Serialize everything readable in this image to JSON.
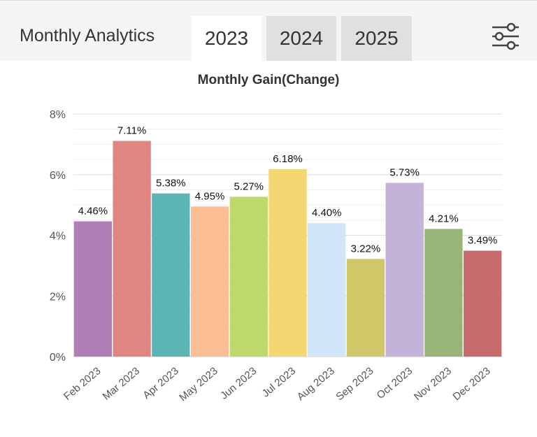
{
  "header": {
    "title": "Monthly Analytics",
    "tabs": [
      {
        "label": "2023",
        "active": true
      },
      {
        "label": "2024",
        "active": false
      },
      {
        "label": "2025",
        "active": false
      }
    ],
    "settings_icon": "sliders-icon"
  },
  "chart_data": {
    "type": "bar",
    "title": "Monthly Gain(Change)",
    "xlabel": "",
    "ylabel": "",
    "ylim": [
      0,
      8
    ],
    "yticks": [
      "0%",
      "2%",
      "4%",
      "6%",
      "8%"
    ],
    "grid": true,
    "categories": [
      "Feb 2023",
      "Mar 2023",
      "Apr 2023",
      "May 2023",
      "Jun 2023",
      "Jul 2023",
      "Aug 2023",
      "Sep 2023",
      "Oct 2023",
      "Nov 2023",
      "Dec 2023"
    ],
    "values": [
      4.46,
      7.11,
      5.38,
      4.95,
      5.27,
      6.18,
      4.4,
      3.22,
      5.73,
      4.21,
      3.49
    ],
    "labels": [
      "4.46%",
      "7.11%",
      "5.38%",
      "4.95%",
      "5.27%",
      "6.18%",
      "4.40%",
      "3.22%",
      "5.73%",
      "4.21%",
      "3.49%"
    ],
    "colors": [
      "#b07fb5",
      "#e08582",
      "#5ab5b5",
      "#fbbd91",
      "#bcd96a",
      "#f5d772",
      "#d2e6f9",
      "#cfc768",
      "#c4b2d8",
      "#98b477",
      "#c76b6d"
    ]
  }
}
